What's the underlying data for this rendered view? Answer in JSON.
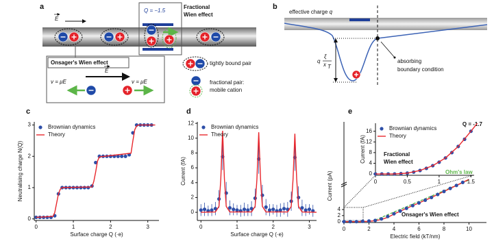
{
  "panel_labels": [
    "a",
    "b",
    "c",
    "d",
    "e"
  ],
  "schematic_a": {
    "field_symbol": "E",
    "charge_label": "Q = −1.5",
    "fractional_title": [
      "Fractional",
      "Wien effect"
    ],
    "onsager_title": "Onsager's Wien effect",
    "velocity_label": "v = μE",
    "bound_pair_label": "tightly bound pair",
    "fractional_pair_label": [
      "fractional pair:",
      "mobile cation"
    ]
  },
  "schematic_b": {
    "charge_label": {
      "text": "effective charge",
      "symbol": "q"
    },
    "barrier": {
      "charge": "q",
      "numerator": "ξ",
      "denominator": "x",
      "subscript": "T"
    },
    "boundary_label": [
      "absorbing",
      "boundary condition"
    ]
  },
  "chart_data": [
    {
      "type": "scatter",
      "xlabel": "Surface charge Q (·e)",
      "ylabel": "Neutralising charge N(Q)",
      "xlim": [
        -0.05,
        3.3
      ],
      "ylim": [
        -0.05,
        3.1
      ],
      "xticks": [
        0,
        1,
        2,
        3
      ],
      "yticks": [
        0,
        1,
        2,
        3
      ],
      "legend": "upper left",
      "series": [
        {
          "name": "Brownian dynamics",
          "type": "scatter",
          "color": "#2e4fa8",
          "x": [
            0,
            0.1,
            0.2,
            0.3,
            0.4,
            0.5,
            0.6,
            0.7,
            0.8,
            0.9,
            1.0,
            1.1,
            1.2,
            1.3,
            1.4,
            1.5,
            1.6,
            1.7,
            1.8,
            1.9,
            2.0,
            2.1,
            2.2,
            2.3,
            2.4,
            2.5,
            2.6,
            2.7,
            2.8,
            2.9,
            3.0,
            3.1
          ],
          "values": [
            0.05,
            0.05,
            0.05,
            0.05,
            0.05,
            0.1,
            0.8,
            1.0,
            1.0,
            1.0,
            1.0,
            1.0,
            1.0,
            1.0,
            1.0,
            1.05,
            1.8,
            2.0,
            2.0,
            2.0,
            2.0,
            2.0,
            2.0,
            2.0,
            2.0,
            2.05,
            2.75,
            3.0,
            3.0,
            3.0,
            3.0,
            3.0
          ]
        },
        {
          "name": "Theory",
          "type": "line",
          "color": "#e8262c",
          "x": [
            0,
            0.45,
            0.5,
            0.55,
            0.6,
            0.65,
            0.7,
            1.5,
            1.55,
            1.6,
            1.65,
            1.7,
            2.55,
            2.6,
            2.65,
            2.7,
            2.75,
            3.2
          ],
          "values": [
            0.05,
            0.08,
            0.2,
            0.5,
            0.8,
            0.95,
            1.0,
            1.02,
            1.2,
            1.5,
            1.85,
            1.98,
            2.1,
            2.5,
            2.85,
            2.97,
            3.0,
            3.0
          ]
        }
      ]
    },
    {
      "type": "scatter",
      "xlabel": "Surface charge Q (·e)",
      "ylabel": "Current (fA)",
      "xlim": [
        -0.1,
        3.2
      ],
      "ylim": [
        -1.1,
        12.2
      ],
      "xticks": [
        0,
        1,
        2,
        3
      ],
      "yticks": [
        0,
        2,
        4,
        6,
        8,
        10,
        12
      ],
      "legend": "upper left",
      "series": [
        {
          "name": "Brownian dynamics",
          "type": "scatter",
          "color": "#2e4fa8",
          "x": [
            0,
            0.1,
            0.2,
            0.3,
            0.4,
            0.5,
            0.6,
            0.7,
            0.8,
            0.9,
            1.0,
            1.1,
            1.2,
            1.3,
            1.4,
            1.5,
            1.6,
            1.7,
            1.8,
            1.9,
            2.0,
            2.1,
            2.2,
            2.3,
            2.4,
            2.5,
            2.6,
            2.7,
            2.8,
            2.9,
            3.0,
            3.1
          ],
          "values": [
            0.3,
            0.4,
            0.2,
            0.3,
            0.5,
            1.8,
            7.5,
            2.6,
            0.6,
            0.4,
            0.3,
            0.2,
            0.4,
            0.3,
            0.5,
            1.9,
            7.2,
            2.3,
            0.7,
            0.3,
            0.4,
            0.2,
            0.3,
            0.5,
            0.4,
            1.5,
            7.4,
            2.0,
            0.6,
            0.3,
            0.4,
            0.2
          ],
          "errors": [
            0.8,
            0.9,
            0.7,
            0.8,
            0.9,
            1.2,
            1.8,
            1.5,
            1.0,
            0.8,
            0.7,
            0.8,
            0.9,
            0.8,
            1.0,
            1.3,
            2.0,
            1.4,
            1.1,
            0.8,
            0.7,
            0.8,
            0.9,
            0.8,
            1.0,
            1.3,
            1.8,
            1.5,
            1.1,
            0.8,
            0.7,
            0.8
          ]
        },
        {
          "name": "Theory",
          "type": "line",
          "color": "#e8262c",
          "x": [
            0,
            0.4,
            0.5,
            0.55,
            0.6,
            0.65,
            0.7,
            0.8,
            1.4,
            1.5,
            1.55,
            1.6,
            1.65,
            1.7,
            1.8,
            2.4,
            2.5,
            2.55,
            2.6,
            2.65,
            2.7,
            2.8,
            3.2
          ],
          "values": [
            0,
            0.05,
            0.8,
            4.5,
            11,
            4.5,
            0.8,
            0.05,
            0.05,
            0.8,
            4.5,
            10.8,
            4.5,
            0.8,
            0.05,
            0.05,
            0.8,
            4.5,
            10.6,
            4.5,
            0.8,
            0.05,
            0
          ]
        }
      ]
    },
    {
      "type": "line",
      "xlabel": "Electric field (kT/nm)",
      "ylabel": "Current (pA)",
      "xlim": [
        0,
        11.4
      ],
      "ylim": [
        -0.3,
        14
      ],
      "xticks": [
        0,
        2,
        4,
        6,
        8,
        10
      ],
      "yticks": [
        0,
        2,
        4
      ],
      "annotations": [
        {
          "text": "Q = -1.7",
          "color": "#111"
        },
        {
          "text": "Ohm's law",
          "color": "#5cb548"
        },
        {
          "text": "Onsager's Wien effect",
          "color": "#111"
        }
      ],
      "series": [
        {
          "type": "line",
          "color": "#5cb548",
          "dash": true,
          "x": [
            2.5,
            10
          ],
          "values": [
            0.5,
            13.8
          ]
        },
        {
          "type": "line",
          "color": "#e8262c",
          "x": [
            0,
            1,
            1.5,
            2,
            2.5,
            3,
            3.5,
            4,
            5,
            6,
            7,
            8,
            9,
            10
          ],
          "values": [
            0,
            0,
            0.05,
            0.1,
            0.3,
            0.7,
            1.4,
            2.5,
            4.4,
            6.2,
            8.0,
            10.0,
            12.0,
            14.0
          ]
        },
        {
          "type": "scatter",
          "color": "#2e4fa8",
          "x": [
            0,
            0.5,
            1,
            1.5,
            2,
            2.5,
            3,
            3.5,
            4,
            4.5,
            5,
            5.5,
            6,
            6.5,
            7,
            7.5,
            8,
            8.5,
            9,
            9.5
          ],
          "values": [
            0,
            0,
            0,
            0.1,
            0.2,
            0.4,
            0.9,
            1.7,
            2.6,
            3.5,
            4.4,
            5.3,
            6.2,
            7.1,
            8.0,
            9.0,
            10.0,
            11.0,
            12.0,
            13.0
          ]
        }
      ]
    },
    {
      "type": "line",
      "ylabel": "Current (fA)",
      "xlim": [
        0,
        1.55
      ],
      "ylim": [
        -0.5,
        19
      ],
      "xticks": [
        0,
        0.5,
        1,
        1.5
      ],
      "yticks": [
        0,
        4,
        8,
        12,
        16
      ],
      "legend": "upper left",
      "annotations": [
        {
          "text": "Fractional",
          "color": "#111"
        },
        {
          "text": "Wien effect",
          "color": "#111"
        }
      ],
      "series": [
        {
          "name": "Brownian dynamics",
          "type": "scatter",
          "color": "#2e4fa8",
          "x": [
            0,
            0.1,
            0.2,
            0.3,
            0.4,
            0.5,
            0.6,
            0.7,
            0.8,
            0.9,
            1.0,
            1.1,
            1.2,
            1.3,
            1.4,
            1.5
          ],
          "values": [
            0,
            0,
            0,
            0,
            0.1,
            0.3,
            0.7,
            1.3,
            2.1,
            3.1,
            4.4,
            6,
            8,
            10.3,
            13,
            16
          ]
        },
        {
          "name": "Theory",
          "type": "line",
          "color": "#e8262c",
          "x": [
            0,
            0.3,
            0.5,
            0.7,
            0.9,
            1.1,
            1.3,
            1.5,
            1.6
          ],
          "values": [
            0,
            0,
            0.3,
            1.3,
            3.1,
            6,
            10.3,
            16,
            19
          ]
        }
      ]
    }
  ]
}
